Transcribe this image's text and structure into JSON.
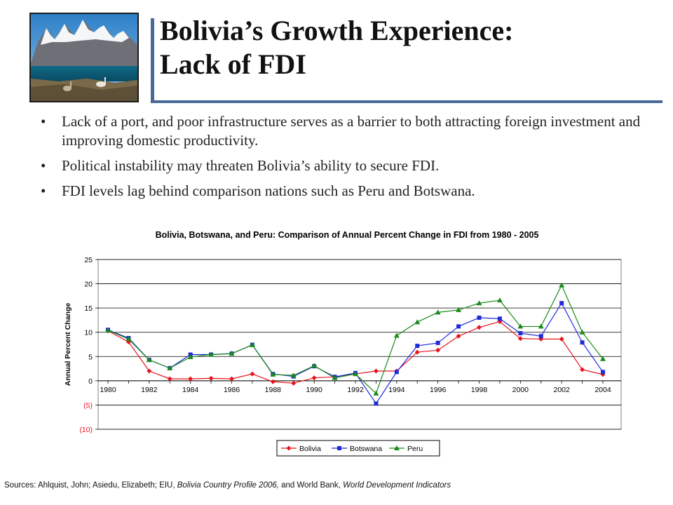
{
  "slide": {
    "title_line1": "Bolivia’s Growth Experience:",
    "title_line2": "Lack of FDI",
    "bullets": [
      "Lack of a port, and poor infrastructure serves as a barrier to both attracting foreign investment and improving domestic productivity.",
      "Political instability may threaten Bolivia’s ability to secure FDI.",
      "FDI levels lag behind comparison nations such as Peru and Botswana."
    ],
    "bullet_glyph": "•",
    "source": {
      "prefix": "Sources: Ahlquist, John; Asiedu, Elizabeth; EIU, ",
      "italic1": "Bolivia Country Profile 2006,",
      "middle": " and World Bank, ",
      "italic2": "World Development Indicators"
    }
  },
  "chart_data": {
    "type": "line",
    "title": "Bolivia, Botswana, and Peru: Comparison of Annual Percent Change in FDI from 1980 - 2005",
    "ylabel": "Annual Percent Change",
    "xlabel": "",
    "ylim": [
      -10,
      25
    ],
    "yticks": [
      -10,
      -5,
      0,
      5,
      10,
      15,
      20,
      25
    ],
    "ytick_labels": [
      "(10)",
      "(5)",
      "0",
      "5",
      "10",
      "15",
      "20",
      "25"
    ],
    "xlim": [
      1980,
      2004
    ],
    "xtick_labels": [
      "1980",
      "1982",
      "1984",
      "1986",
      "1988",
      "1990",
      "1992",
      "1994",
      "1996",
      "1998",
      "2000",
      "2002",
      "2004"
    ],
    "grid": "horizontal",
    "legend_position": "bottom",
    "x": [
      1980,
      1981,
      1982,
      1983,
      1984,
      1985,
      1986,
      1987,
      1988,
      1989,
      1990,
      1991,
      1992,
      1993,
      1994,
      1995,
      1996,
      1997,
      1998,
      1999,
      2000,
      2001,
      2002,
      2003,
      2004
    ],
    "series": [
      {
        "name": "Bolivia",
        "color": "#e8141c",
        "marker": "diamond",
        "values": [
          10.3,
          8.0,
          2.0,
          0.4,
          0.4,
          0.5,
          0.4,
          1.4,
          -0.2,
          -0.5,
          0.6,
          0.8,
          1.4,
          2.0,
          2.0,
          5.9,
          6.3,
          9.2,
          11.0,
          12.2,
          8.7,
          8.6,
          8.6,
          2.3,
          1.3
        ]
      },
      {
        "name": "Botswana",
        "color": "#1f2bd6",
        "marker": "square",
        "values": [
          10.5,
          8.8,
          4.3,
          2.6,
          5.4,
          5.4,
          5.6,
          7.4,
          1.4,
          0.9,
          3.0,
          0.8,
          1.6,
          -4.7,
          1.8,
          7.2,
          7.8,
          11.2,
          13.0,
          12.8,
          9.8,
          9.2,
          16.0,
          7.9,
          1.8
        ]
      },
      {
        "name": "Peru",
        "color": "#1a8a1a",
        "marker": "triangle",
        "values": [
          10.4,
          8.6,
          4.3,
          2.6,
          4.9,
          5.4,
          5.6,
          7.4,
          1.3,
          1.1,
          3.1,
          0.6,
          1.4,
          -2.6,
          9.3,
          12.1,
          14.1,
          14.6,
          16.0,
          16.6,
          11.2,
          11.2,
          19.7,
          10.0,
          4.5
        ]
      }
    ]
  }
}
